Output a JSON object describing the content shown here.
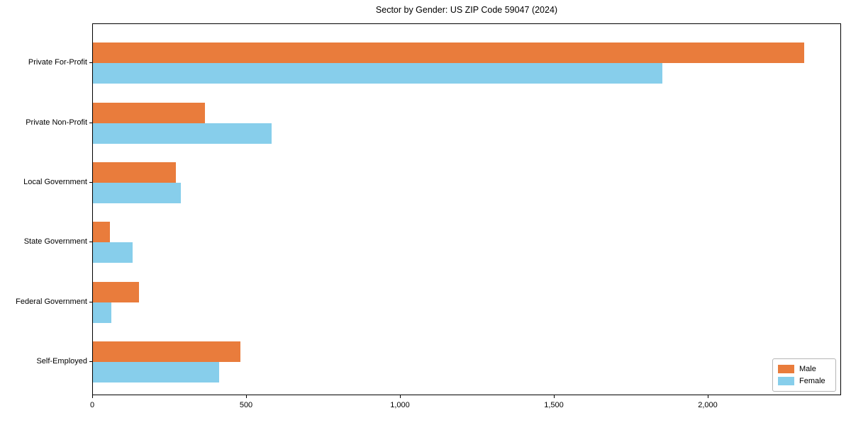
{
  "chart_data": {
    "type": "bar",
    "orientation": "horizontal",
    "title": "Sector by Gender: US ZIP Code 59047 (2024)",
    "categories": [
      "Private For-Profit",
      "Private Non-Profit",
      "Local Government",
      "State Government",
      "Federal Government",
      "Self-Employed"
    ],
    "series": [
      {
        "name": "Male",
        "color": "#E97C3C",
        "values": [
          2310,
          365,
          270,
          55,
          150,
          480
        ]
      },
      {
        "name": "Female",
        "color": "#87CEEB",
        "values": [
          1850,
          580,
          285,
          130,
          60,
          410
        ]
      }
    ],
    "xlabel": "",
    "ylabel": "",
    "xlim": [
      0,
      2433
    ],
    "xticks": [
      0,
      500,
      1000,
      1500,
      2000
    ],
    "xtick_labels": [
      "0",
      "500",
      "1,000",
      "1,500",
      "2,000"
    ],
    "grid": false,
    "legend_position": "lower right",
    "axis_color": "#000000",
    "text_color": "#000000"
  }
}
